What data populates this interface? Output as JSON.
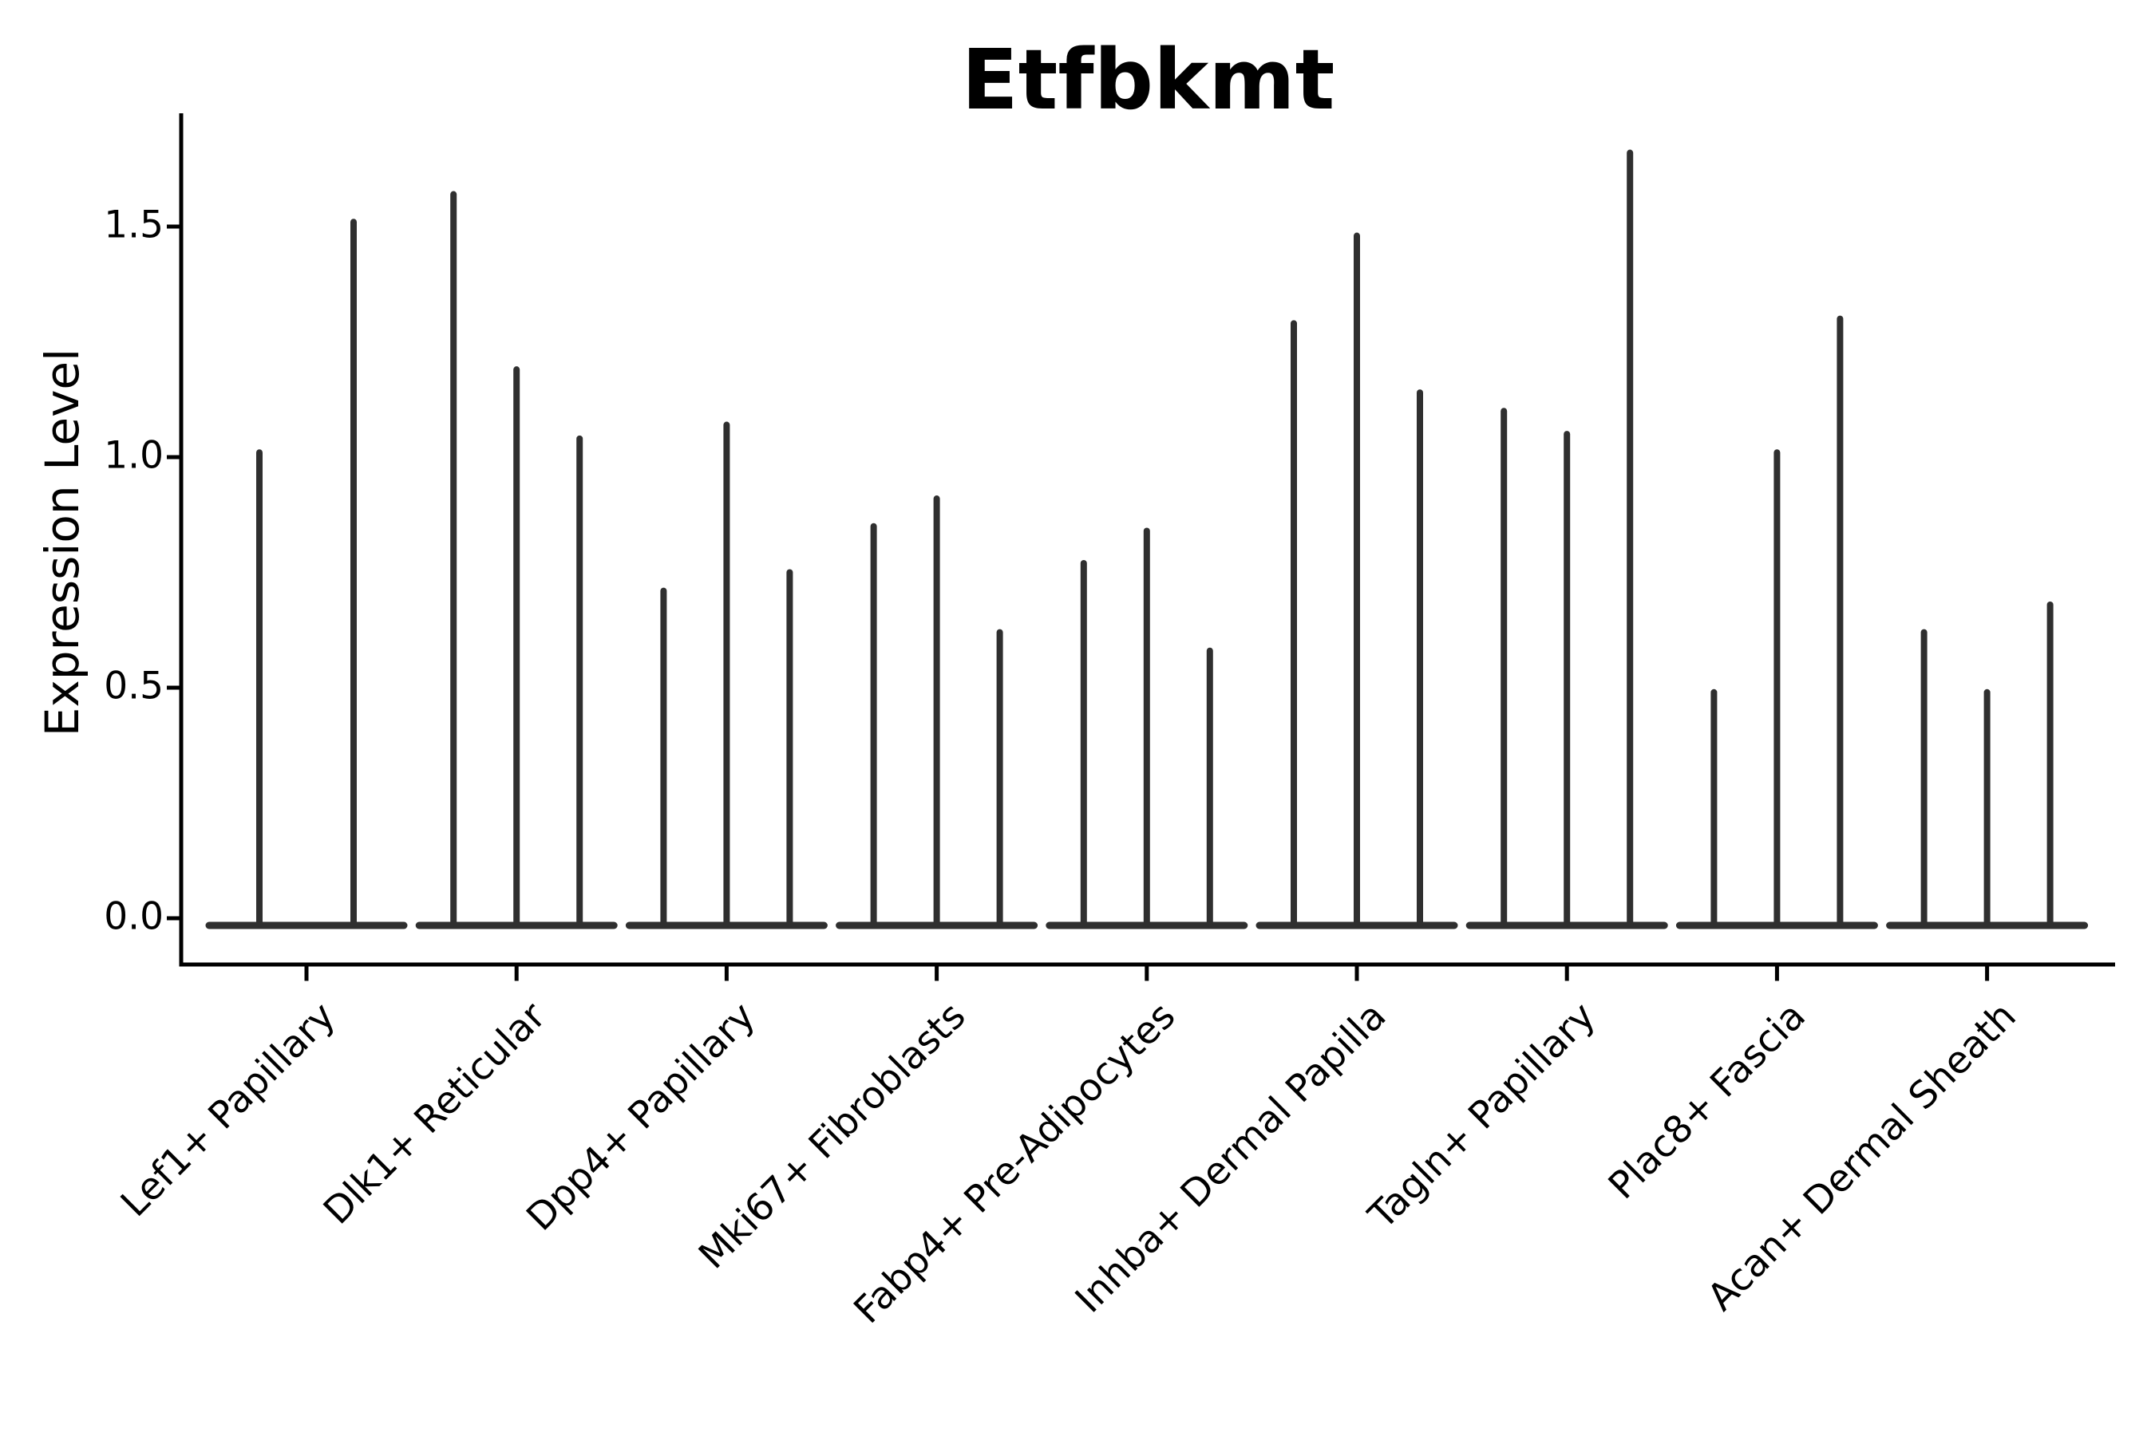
{
  "figure": {
    "title": "Etfbkmt"
  },
  "axes": {
    "ylabel": "Expression Level",
    "ytick_labels": [
      "0.0",
      "0.5",
      "1.0",
      "1.5"
    ]
  },
  "chart_data": {
    "type": "violin",
    "title": "Etfbkmt",
    "xlabel": "",
    "ylabel": "Expression Level",
    "yticks": [
      0.0,
      0.5,
      1.0,
      1.5
    ],
    "ylim": [
      -0.1,
      1.75
    ],
    "grid": false,
    "legend": null,
    "background": "#ffffff",
    "violin_color": "#2f2f2f",
    "axis_color": "#000000",
    "description": "Needle-thin violins: density concentrated at 0 with a thin spike up to each group's max expression value; flat violin body rendered as a horizontal baseline at 0 for each category.",
    "categories": [
      "Lef1+ Papillary",
      "Dlk1+ Reticular",
      "Dpp4+ Papillary",
      "Mki67+ Fibroblasts",
      "Fabp4+ Pre-Adipocytes",
      "Inhba+ Dermal Papilla",
      "Tagln+ Papillary",
      "Plac8+ Fascia",
      "Acan+ Dermal Sheath"
    ],
    "violins_per_category": [
      2,
      3,
      3,
      3,
      3,
      3,
      3,
      3,
      3
    ],
    "baseline_value": 0.0,
    "max_expression": [
      [
        1.01,
        1.51
      ],
      [
        1.57,
        1.19,
        1.04
      ],
      [
        0.71,
        1.07,
        0.75
      ],
      [
        0.85,
        0.91,
        0.62
      ],
      [
        0.77,
        0.84,
        0.58
      ],
      [
        1.29,
        1.48,
        1.14
      ],
      [
        1.1,
        1.05,
        1.66
      ],
      [
        0.49,
        1.01,
        1.3
      ],
      [
        0.62,
        0.49,
        0.68
      ]
    ]
  }
}
